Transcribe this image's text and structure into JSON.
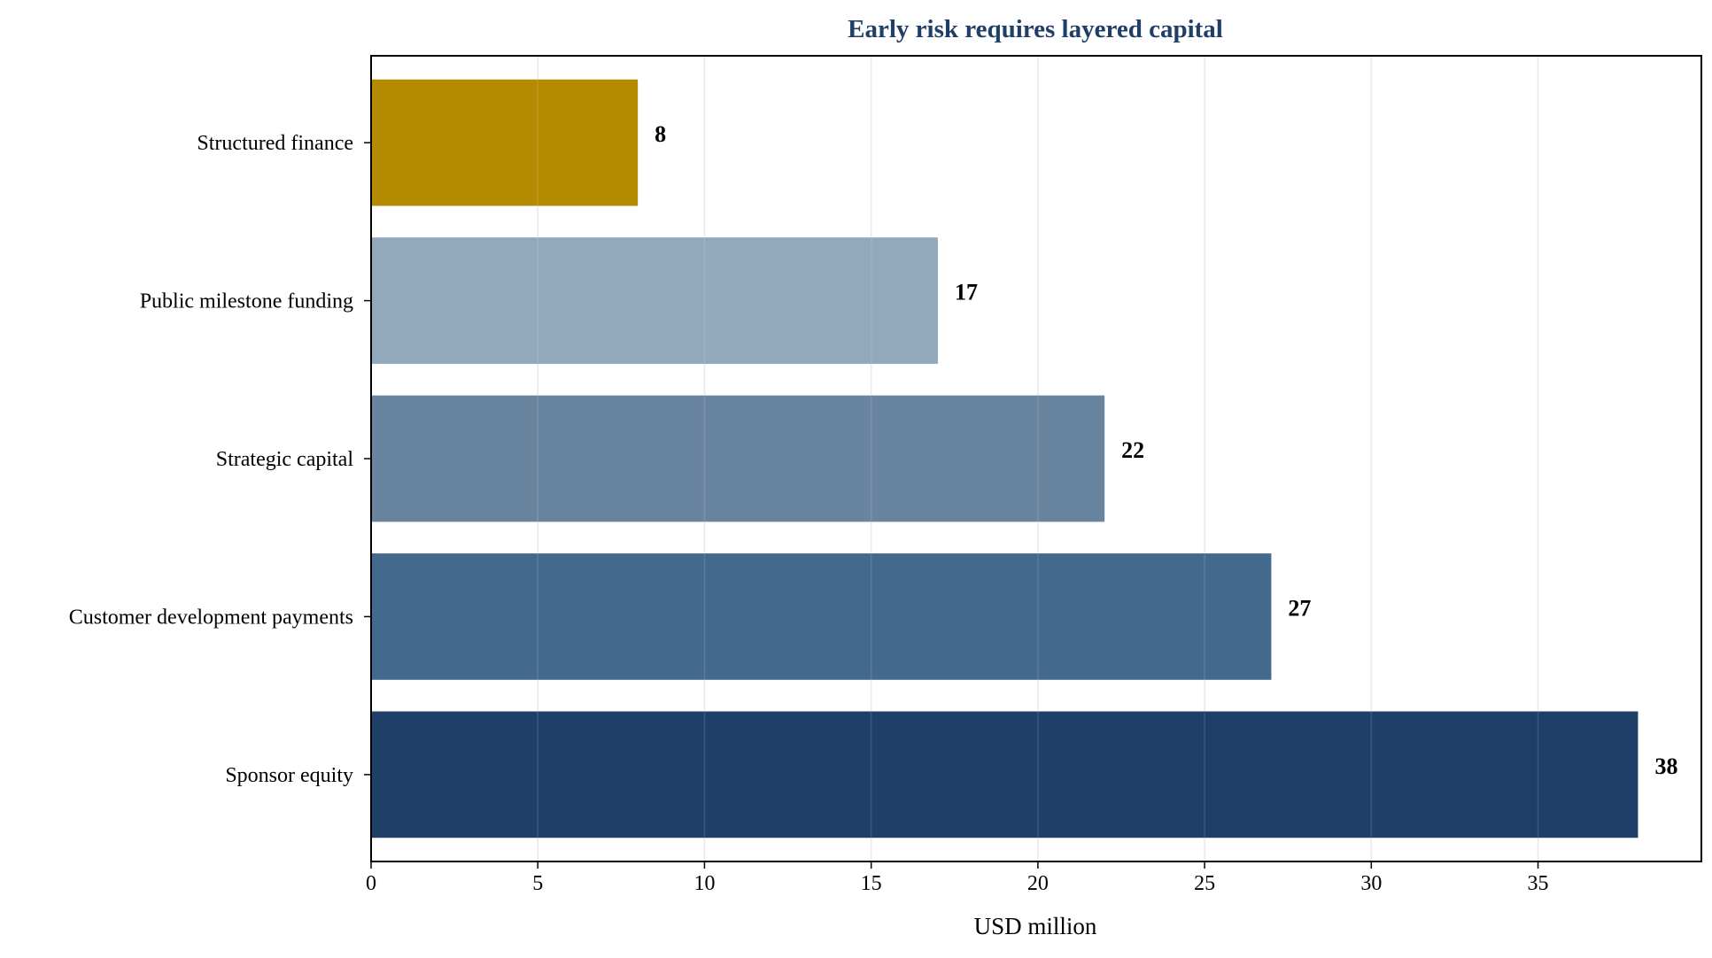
{
  "chart_data": {
    "type": "bar",
    "orientation": "horizontal",
    "title": "Early risk requires layered capital",
    "xlabel": "USD million",
    "ylabel": "",
    "categories": [
      "Sponsor equity",
      "Customer development payments",
      "Strategic capital",
      "Public milestone funding",
      "Structured finance"
    ],
    "values": [
      38,
      27,
      22,
      17,
      8
    ],
    "value_labels": [
      "38",
      "27",
      "22",
      "17",
      "8"
    ],
    "bar_colors": [
      "#203f68",
      "#44698e",
      "#68849f",
      "#92a8bb",
      "#b38a00"
    ],
    "xlim": [
      0,
      39.9
    ],
    "xticks": [
      0,
      5,
      10,
      15,
      20,
      25,
      30,
      35
    ],
    "xtick_labels": [
      "0",
      "5",
      "10",
      "15",
      "20",
      "25",
      "30",
      "35"
    ],
    "grid": "vertical",
    "legend": "none"
  },
  "colors": {
    "title": "#203f68",
    "grid": "#e6e6e6",
    "axis": "#000000"
  }
}
